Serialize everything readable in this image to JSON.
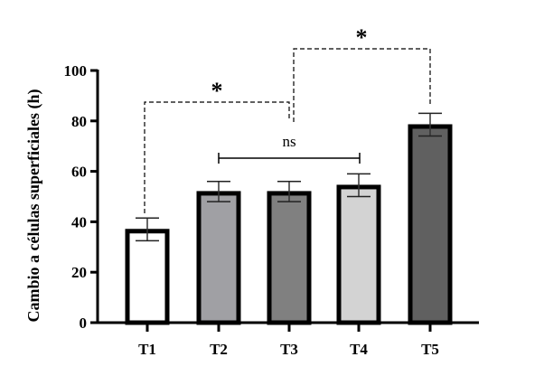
{
  "chart_data": {
    "type": "bar",
    "title": "",
    "xlabel": "",
    "ylabel": "Cambio a células superficiales (h)",
    "ylim": [
      0,
      100
    ],
    "yticks": [
      0,
      20,
      40,
      60,
      80,
      100
    ],
    "grid": false,
    "legend": null,
    "categories": [
      "T1",
      "T2",
      "T3",
      "T4",
      "T5"
    ],
    "values": [
      37,
      52,
      52,
      54.5,
      78.5
    ],
    "errors": [
      4.5,
      4,
      4,
      4.5,
      4.5
    ],
    "bar_colors": [
      "#ffffff",
      "#a0a0a4",
      "#808080",
      "#d3d3d3",
      "#606060"
    ],
    "annotations": [
      {
        "type": "bracket-dashed",
        "from": "T1",
        "to": "T3",
        "label": "*"
      },
      {
        "type": "bracket-dashed",
        "from": "T3",
        "to": "T5",
        "label": "*"
      },
      {
        "type": "bracket-solid",
        "from": "T2",
        "to": "T4",
        "label": "ns"
      }
    ]
  }
}
